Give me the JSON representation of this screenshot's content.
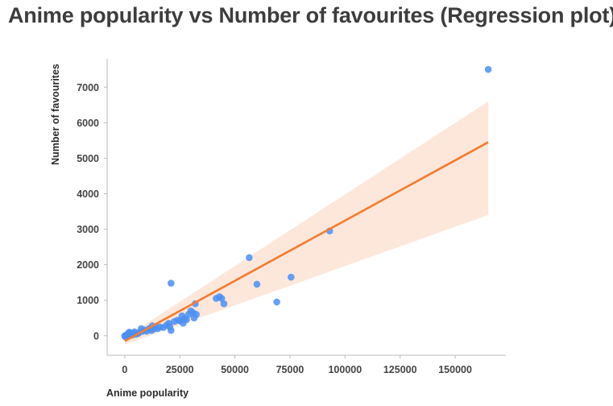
{
  "chart_data": {
    "type": "scatter",
    "title": "Anime popularity vs Number of favourites (Regression plot)",
    "xlabel": "Anime popularity",
    "ylabel": "Number of favourites",
    "xlim": [
      -8000,
      173000
    ],
    "ylim": [
      -550,
      7800
    ],
    "xticks": [
      0,
      25000,
      50000,
      75000,
      100000,
      125000,
      150000
    ],
    "xtick_labels": [
      "0",
      "25000",
      "50000",
      "75000",
      "100000",
      "125000",
      "150000"
    ],
    "yticks": [
      0,
      1000,
      2000,
      3000,
      4000,
      5000,
      6000,
      7000
    ],
    "ytick_labels": [
      "0",
      "1000",
      "2000",
      "3000",
      "4000",
      "5000",
      "6000",
      "7000"
    ],
    "grid": false,
    "colors": {
      "points": "#4b8ff2",
      "line": "#f47b30",
      "band": "#fde3d3",
      "axis": "#bbbbbb"
    },
    "points": [
      [
        165000,
        7500
      ],
      [
        93000,
        2950
      ],
      [
        56500,
        2200
      ],
      [
        75500,
        1650
      ],
      [
        60000,
        1450
      ],
      [
        69000,
        950
      ],
      [
        21000,
        1480
      ],
      [
        41500,
        1050
      ],
      [
        43000,
        1100
      ],
      [
        44000,
        1050
      ],
      [
        45000,
        900
      ],
      [
        32000,
        900
      ],
      [
        30000,
        700
      ],
      [
        31000,
        650
      ],
      [
        32500,
        600
      ],
      [
        29000,
        600
      ],
      [
        31500,
        500
      ],
      [
        27000,
        480
      ],
      [
        26000,
        560
      ],
      [
        28000,
        450
      ],
      [
        25000,
        420
      ],
      [
        26500,
        350
      ],
      [
        24000,
        440
      ],
      [
        22500,
        400
      ],
      [
        20000,
        350
      ],
      [
        21000,
        150
      ],
      [
        20500,
        250
      ],
      [
        19000,
        300
      ],
      [
        17500,
        230
      ],
      [
        16000,
        250
      ],
      [
        15000,
        200
      ],
      [
        14000,
        250
      ],
      [
        13000,
        180
      ],
      [
        12500,
        280
      ],
      [
        12000,
        150
      ],
      [
        11000,
        200
      ],
      [
        10000,
        130
      ],
      [
        9000,
        160
      ],
      [
        8000,
        120
      ],
      [
        7500,
        200
      ],
      [
        6500,
        90
      ],
      [
        5000,
        40
      ],
      [
        6000,
        60
      ],
      [
        4000,
        70
      ],
      [
        3000,
        40
      ],
      [
        2000,
        100
      ],
      [
        1500,
        50
      ],
      [
        1000,
        30
      ],
      [
        500,
        10
      ],
      [
        200,
        -30
      ],
      [
        0,
        0
      ],
      [
        800,
        -20
      ],
      [
        3500,
        20
      ],
      [
        2500,
        80
      ],
      [
        4500,
        110
      ]
    ],
    "regression": {
      "x": [
        0,
        165000
      ],
      "y": [
        -150,
        5450
      ]
    },
    "confidence_band": {
      "x": [
        0,
        165000
      ],
      "upper": [
        -50,
        6600
      ],
      "lower": [
        -250,
        3400
      ]
    }
  }
}
